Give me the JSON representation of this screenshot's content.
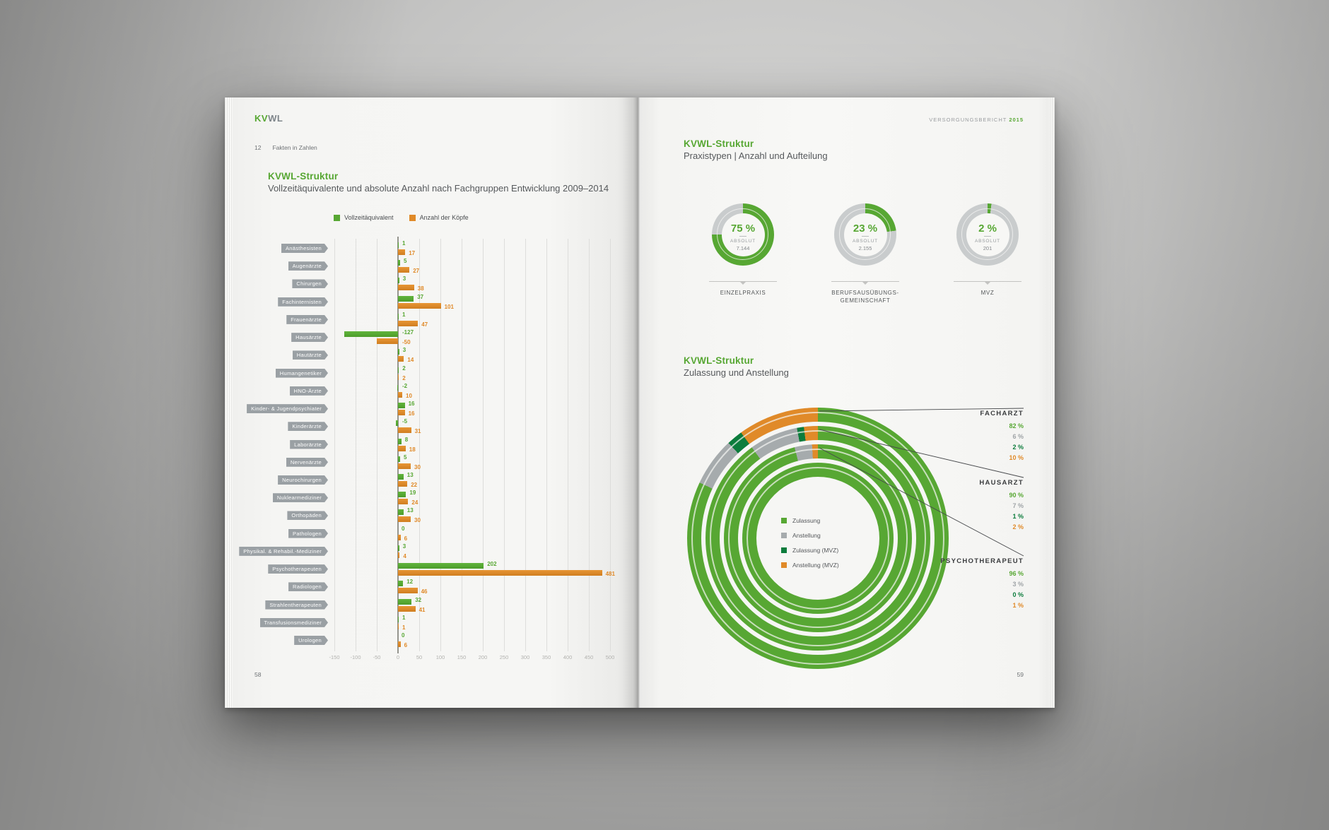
{
  "palette": {
    "green": "#57a733",
    "dark_green": "#0c7c3c",
    "orange": "#e08a29",
    "donut_gray": "#c9cccd",
    "ring_gray": "#a6abad",
    "value_gray": "#9fa4a7",
    "chip_gray": "#9aa0a4"
  },
  "left_page": {
    "logo_kv": "KV",
    "logo_wl": "WL",
    "chapter_number": "12",
    "chapter_label": "Fakten in Zahlen",
    "section_title": "KVWL-Struktur",
    "section_subtitle": "Vollzeitäquivalente und absolute Anzahl nach Fachgruppen Entwicklung 2009–2014",
    "page_number": "58"
  },
  "right_page": {
    "report_label": "VERSORGUNGSBERICHT",
    "report_year": "2015",
    "section1_title": "KVWL-Struktur",
    "section1_subtitle": "Praxistypen | Anzahl und Aufteilung",
    "section2_title": "KVWL-Struktur",
    "section2_subtitle": "Zulassung und Anstellung",
    "page_number": "59"
  },
  "chart_data": [
    {
      "type": "bar",
      "orientation": "horizontal",
      "title": "Vollzeitäquivalente und absolute Anzahl nach Fachgruppen Entwicklung 2009–2014",
      "categories": [
        "Anästhesisten",
        "Augenärzte",
        "Chirurgen",
        "Fachinternisten",
        "Frauenärzte",
        "Hausärzte",
        "Hautärzte",
        "Humangenetiker",
        "HNO-Ärzte",
        "Kinder- & Jugendpsychiater",
        "Kinderärzte",
        "Laborärzte",
        "Nervenärzte",
        "Neurochirurgen",
        "Nuklearmediziner",
        "Orthopäden",
        "Pathologen",
        "Physikal. & Rehabil.-Mediziner",
        "Psychotherapeuten",
        "Radiologen",
        "Strahlentherapeuten",
        "Transfusionsmediziner",
        "Urologen"
      ],
      "series": [
        {
          "name": "Vollzeitäquivalent",
          "color": "#57a733",
          "values": [
            1,
            5,
            3,
            37,
            1,
            -127,
            3,
            2,
            -2,
            16,
            -5,
            8,
            5,
            13,
            19,
            13,
            0,
            3,
            202,
            12,
            32,
            1,
            0
          ]
        },
        {
          "name": "Anzahl der Köpfe",
          "color": "#e08a29",
          "values": [
            17,
            27,
            38,
            101,
            47,
            -50,
            14,
            2,
            10,
            16,
            31,
            18,
            30,
            22,
            24,
            30,
            6,
            4,
            481,
            46,
            41,
            1,
            6
          ]
        }
      ],
      "xlim": [
        -150,
        500
      ],
      "ticks": [
        -150,
        -100,
        -50,
        0,
        50,
        100,
        150,
        200,
        250,
        300,
        350,
        400,
        450,
        500
      ],
      "grid": true,
      "legend_position": "top"
    },
    {
      "type": "pie",
      "subtype": "donuts",
      "title": "Praxistypen | Anzahl und Aufteilung",
      "donuts": [
        {
          "pct": "75 %",
          "value": 75,
          "absolut_label": "ABSOLUT",
          "absolut": "7.144",
          "caption_lines": [
            "EINZELPRAXIS"
          ]
        },
        {
          "pct": "23 %",
          "value": 23,
          "absolut_label": "ABSOLUT",
          "absolut": "2.155",
          "caption_lines": [
            "BERUFSAUSÜBUNGS-",
            "GEMEINSCHAFT"
          ]
        },
        {
          "pct": "2 %",
          "value": 2,
          "absolut_label": "ABSOLUT",
          "absolut": "201",
          "caption_lines": [
            "MVZ"
          ]
        }
      ]
    },
    {
      "type": "pie",
      "subtype": "concentric-rings",
      "title": "Zulassung und Anstellung",
      "legend": [
        {
          "label": "Zulassung",
          "color": "#57a733"
        },
        {
          "label": "Anstellung",
          "color": "#a6abad"
        },
        {
          "label": "Zulassung (MVZ)",
          "color": "#0c7c3c"
        },
        {
          "label": "Anstellung (MVZ)",
          "color": "#e08a29"
        }
      ],
      "rings": [
        {
          "name": "FACHARZT",
          "segments": [
            82,
            6,
            2,
            10
          ]
        },
        {
          "name": "HAUSARZT",
          "segments": [
            90,
            7,
            1,
            2
          ]
        },
        {
          "name": "PSYCHOTHERAPEUT",
          "segments": [
            96,
            3,
            0,
            1
          ]
        }
      ],
      "labels": [
        {
          "name": "FACHARZT",
          "values": [
            "82 %",
            "6 %",
            "2 %",
            "10 %"
          ]
        },
        {
          "name": "HAUSARZT",
          "values": [
            "90 %",
            "7 %",
            "1 %",
            "2 %"
          ]
        },
        {
          "name": "PSYCHOTHERAPEUT",
          "values": [
            "96 %",
            "3 %",
            "0 %",
            "1 %"
          ]
        }
      ]
    }
  ]
}
